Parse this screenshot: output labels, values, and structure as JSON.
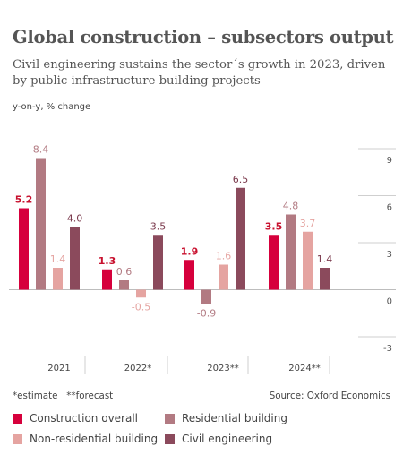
{
  "header": {
    "title": "Global construction – subsectors output",
    "subtitle": "Civil engineering sustains the sector´s growth in 2023, driven by public infrastructure building projects"
  },
  "footer": {
    "notes": "*estimate   **forecast",
    "source": "Source: Oxford Economics"
  },
  "chart_data": {
    "type": "bar",
    "ylabel": "y-on-y, % change",
    "categories": [
      "2021",
      "2022*",
      "2023**",
      "2024**"
    ],
    "ylim": [
      -3,
      9
    ],
    "yticks": [
      "9",
      "6",
      "3",
      "0",
      "-3"
    ],
    "grid": true,
    "legend_placement": "bottom",
    "series": [
      {
        "name": "Construction overall",
        "color": "#d6003c",
        "labelColor": "#c8102e",
        "values": [
          5.2,
          1.3,
          1.9,
          3.5
        ],
        "labels": [
          "5.2",
          "1.3",
          "1.9",
          "3.5"
        ]
      },
      {
        "name": "Residential building",
        "color": "#b27a82",
        "labelColor": "#b27a82",
        "values": [
          8.4,
          0.6,
          -0.9,
          4.8
        ],
        "labels": [
          "8.4",
          "0.6",
          "-0.9",
          "4.8"
        ]
      },
      {
        "name": "Non-residential building",
        "color": "#e5a4a1",
        "labelColor": "#e5a4a1",
        "values": [
          1.4,
          -0.5,
          1.6,
          3.7
        ],
        "labels": [
          "1.4",
          "-0.5",
          "1.6",
          "3.7"
        ]
      },
      {
        "name": "Civil engineering",
        "color": "#8b4a5c",
        "labelColor": "#7b3a4d",
        "values": [
          4.0,
          3.5,
          6.5,
          1.4
        ],
        "labels": [
          "4.0",
          "3.5",
          "6.5",
          "1.4"
        ]
      }
    ],
    "legend_order": [
      0,
      1,
      2,
      3
    ]
  }
}
